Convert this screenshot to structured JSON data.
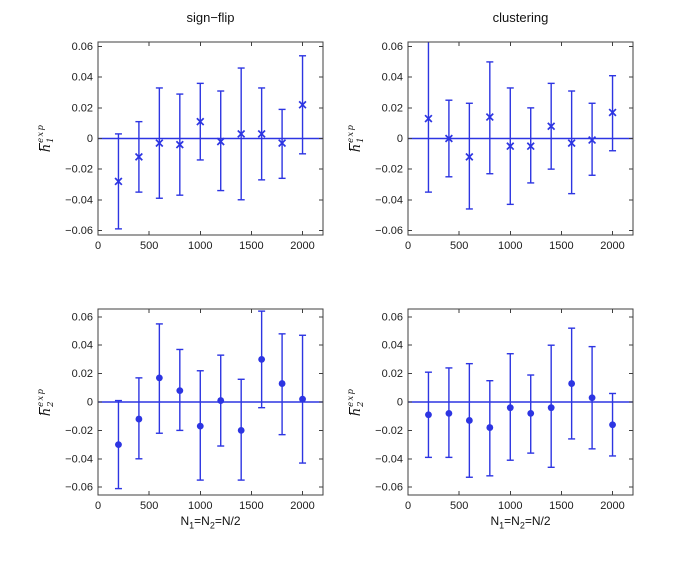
{
  "figure": {
    "background": "#ffffff",
    "accent_blue": "#2d35e2",
    "axis_color": "#3f3f3f",
    "text_color": "#1b1b1b"
  },
  "ylabels": {
    "top": {
      "letter": "h",
      "sub": "1",
      "sup": "exp"
    },
    "bottom": {
      "letter": "h",
      "sub": "2",
      "sup": "exp"
    }
  },
  "xlabel": {
    "n1": "N",
    "sub1": "1",
    "n2": "=N",
    "sub2": "2",
    "rest": "=N/2"
  },
  "chart_data": [
    {
      "type": "scatter",
      "position": "top-left",
      "title": "sign−flip",
      "ylabel": "h̄_1^exp",
      "xlabel": "",
      "marker": "x",
      "color": "#2d35e2",
      "x": [
        200,
        400,
        600,
        800,
        1000,
        1200,
        1400,
        1600,
        1800,
        2000
      ],
      "y": [
        -0.028,
        -0.012,
        -0.003,
        -0.004,
        0.011,
        -0.002,
        0.003,
        0.003,
        -0.003,
        0.022
      ],
      "y_upper": [
        0.003,
        0.011,
        0.033,
        0.029,
        0.036,
        0.031,
        0.046,
        0.033,
        0.019,
        0.054
      ],
      "y_lower": [
        -0.059,
        -0.035,
        -0.039,
        -0.037,
        -0.014,
        -0.034,
        -0.04,
        -0.027,
        -0.026,
        -0.01
      ],
      "xlim": [
        0,
        2200
      ],
      "ylim": [
        -0.063,
        0.063
      ],
      "zero_line": 0,
      "xticks": [
        0,
        500,
        1000,
        1500,
        2000
      ],
      "xticklabels": [
        "0",
        "500",
        "1000",
        "1500",
        "2000"
      ],
      "yticks": [
        -0.06,
        -0.04,
        -0.02,
        0,
        0.02,
        0.04,
        0.06
      ],
      "yticklabels": [
        "−0.06",
        "−0.04",
        "−0.02",
        "0",
        "0.02",
        "0.04",
        "0.06"
      ]
    },
    {
      "type": "scatter",
      "position": "top-right",
      "title": "clustering",
      "ylabel": "h̄_1^exp",
      "xlabel": "",
      "marker": "x",
      "color": "#2d35e2",
      "x": [
        200,
        400,
        600,
        800,
        1000,
        1200,
        1400,
        1600,
        1800,
        2000
      ],
      "y": [
        0.013,
        0.0,
        -0.012,
        0.014,
        -0.005,
        -0.005,
        0.008,
        -0.003,
        -0.001,
        0.017
      ],
      "y_upper": [
        0.068,
        0.025,
        0.023,
        0.05,
        0.033,
        0.02,
        0.036,
        0.031,
        0.023,
        0.041
      ],
      "y_lower": [
        -0.035,
        -0.025,
        -0.046,
        -0.023,
        -0.043,
        -0.029,
        -0.02,
        -0.036,
        -0.024,
        -0.008
      ],
      "xlim": [
        0,
        2200
      ],
      "ylim": [
        -0.063,
        0.063
      ],
      "zero_line": 0,
      "xticks": [
        0,
        500,
        1000,
        1500,
        2000
      ],
      "xticklabels": [
        "0",
        "500",
        "1000",
        "1500",
        "2000"
      ],
      "yticks": [
        -0.06,
        -0.04,
        -0.02,
        0,
        0.02,
        0.04,
        0.06
      ],
      "yticklabels": [
        "−0.06",
        "−0.04",
        "−0.02",
        "0",
        "0.02",
        "0.04",
        "0.06"
      ]
    },
    {
      "type": "scatter",
      "position": "bottom-left",
      "title": "",
      "ylabel": "h̄_2^exp",
      "xlabel": "N_1=N_2=N/2",
      "marker": "dot",
      "color": "#2d35e2",
      "x": [
        200,
        400,
        600,
        800,
        1000,
        1200,
        1400,
        1600,
        1800,
        2000
      ],
      "y": [
        -0.03,
        -0.012,
        0.017,
        0.008,
        -0.017,
        0.001,
        -0.02,
        0.03,
        0.013,
        0.002
      ],
      "y_upper": [
        0.001,
        0.017,
        0.055,
        0.037,
        0.022,
        0.033,
        0.016,
        0.064,
        0.048,
        0.047
      ],
      "y_lower": [
        -0.061,
        -0.04,
        -0.022,
        -0.02,
        -0.055,
        -0.031,
        -0.055,
        -0.004,
        -0.023,
        -0.043
      ],
      "xlim": [
        0,
        2200
      ],
      "ylim": [
        -0.0655,
        0.0655
      ],
      "zero_line": 0,
      "xticks": [
        0,
        500,
        1000,
        1500,
        2000
      ],
      "xticklabels": [
        "0",
        "500",
        "1000",
        "1500",
        "2000"
      ],
      "yticks": [
        -0.06,
        -0.04,
        -0.02,
        0,
        0.02,
        0.04,
        0.06
      ],
      "yticklabels": [
        "−0.06",
        "−0.04",
        "−0.02",
        "0",
        "0.02",
        "0.04",
        "0.06"
      ]
    },
    {
      "type": "scatter",
      "position": "bottom-right",
      "title": "",
      "ylabel": "h̄_2^exp",
      "xlabel": "N_1=N_2=N/2",
      "marker": "dot",
      "color": "#2d35e2",
      "x": [
        200,
        400,
        600,
        800,
        1000,
        1200,
        1400,
        1600,
        1800,
        2000
      ],
      "y": [
        -0.009,
        -0.008,
        -0.013,
        -0.018,
        -0.004,
        -0.008,
        -0.004,
        0.013,
        0.003,
        -0.016
      ],
      "y_upper": [
        0.021,
        0.024,
        0.027,
        0.015,
        0.034,
        0.019,
        0.04,
        0.052,
        0.039,
        0.006
      ],
      "y_lower": [
        -0.039,
        -0.039,
        -0.053,
        -0.052,
        -0.041,
        -0.036,
        -0.046,
        -0.026,
        -0.033,
        -0.038
      ],
      "xlim": [
        0,
        2200
      ],
      "ylim": [
        -0.0655,
        0.0655
      ],
      "zero_line": 0,
      "xticks": [
        0,
        500,
        1000,
        1500,
        2000
      ],
      "xticklabels": [
        "0",
        "500",
        "1000",
        "1500",
        "2000"
      ],
      "yticks": [
        -0.06,
        -0.04,
        -0.02,
        0,
        0.02,
        0.04,
        0.06
      ],
      "yticklabels": [
        "−0.06",
        "−0.04",
        "−0.02",
        "0",
        "0.02",
        "0.04",
        "0.06"
      ]
    }
  ]
}
